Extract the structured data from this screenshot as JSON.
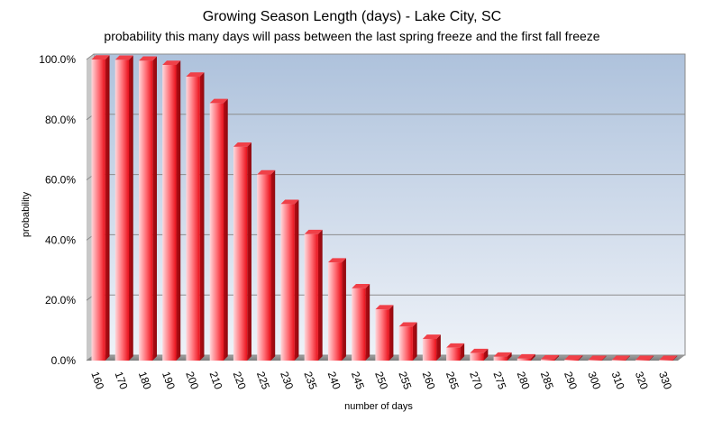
{
  "chart_data": {
    "type": "bar",
    "title": "Growing Season Length (days) - Lake City, SC",
    "subtitle": "probability this many days will pass between the last spring freeze and the first fall freeze",
    "xlabel": "number of days",
    "ylabel": "probability",
    "categories": [
      "160",
      "170",
      "180",
      "190",
      "200",
      "210",
      "220",
      "225",
      "230",
      "235",
      "240",
      "245",
      "250",
      "255",
      "260",
      "265",
      "270",
      "275",
      "280",
      "285",
      "290",
      "300",
      "310",
      "320",
      "330"
    ],
    "values": [
      100.0,
      99.9,
      99.6,
      98.2,
      94.3,
      85.5,
      71.0,
      61.8,
      52.0,
      42.0,
      32.6,
      24.0,
      17.0,
      11.3,
      7.2,
      4.3,
      2.5,
      1.3,
      0.7,
      0.4,
      0.3,
      0.2,
      0.2,
      0.2,
      0.2
    ],
    "ylim": [
      0,
      100
    ],
    "yticks": [
      "0.0%",
      "20.0%",
      "40.0%",
      "60.0%",
      "80.0%",
      "100.0%"
    ],
    "grid": true,
    "colors": {
      "bar": "#e8101a",
      "bar_light": "#ffd8dc",
      "plot_top": "#aec2dc",
      "plot_bottom": "#eef2f8"
    }
  }
}
